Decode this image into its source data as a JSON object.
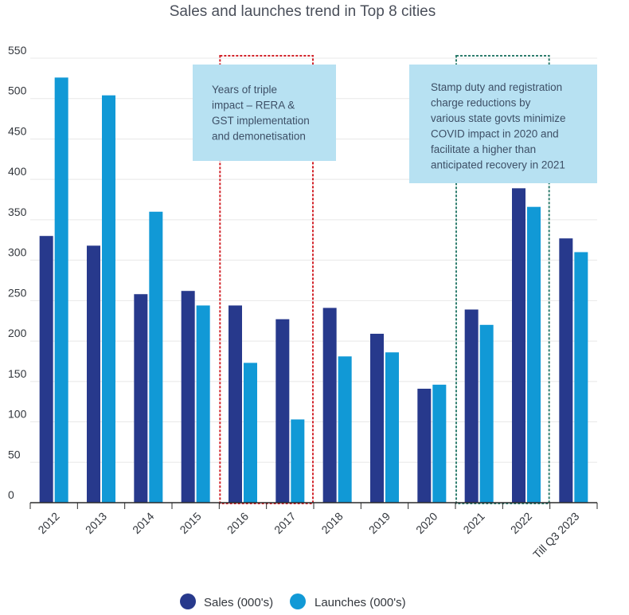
{
  "chart_data": {
    "type": "bar",
    "title": "Sales and launches trend in Top 8 cities",
    "categories": [
      "2012",
      "2013",
      "2014",
      "2015",
      "2016",
      "2017",
      "2018",
      "2019",
      "2020",
      "2021",
      "2022",
      "Till Q3 2023"
    ],
    "series": [
      {
        "name": "Sales (000's)",
        "color": "#27398c",
        "values": [
          330,
          318,
          258,
          262,
          244,
          227,
          241,
          209,
          141,
          239,
          389,
          327
        ]
      },
      {
        "name": "Launches (000's)",
        "color": "#1199d6",
        "values": [
          526,
          504,
          360,
          244,
          173,
          103,
          181,
          186,
          146,
          220,
          366,
          310
        ]
      }
    ],
    "yticks": [
      0,
      50,
      100,
      150,
      200,
      250,
      300,
      350,
      400,
      450,
      500,
      550
    ],
    "ylim": [
      0,
      550
    ],
    "xlabel": "",
    "ylabel": "",
    "grid": true,
    "legend_position": "bottom",
    "annotations": [
      {
        "lines": [
          "Years of triple",
          "impact – RERA &",
          "GST implementation",
          "and demonetisation"
        ],
        "period": [
          "2016",
          "2017"
        ],
        "border_color": "#d2232a"
      },
      {
        "lines": [
          "Stamp duty and registration",
          "charge reductions by",
          "various state govts minimize",
          "COVID impact in 2020 and",
          "facilitate a higher than",
          "anticipated recovery in 2021"
        ],
        "period": [
          "2021",
          "2022"
        ],
        "border_color": "#2e7d6e"
      }
    ]
  }
}
